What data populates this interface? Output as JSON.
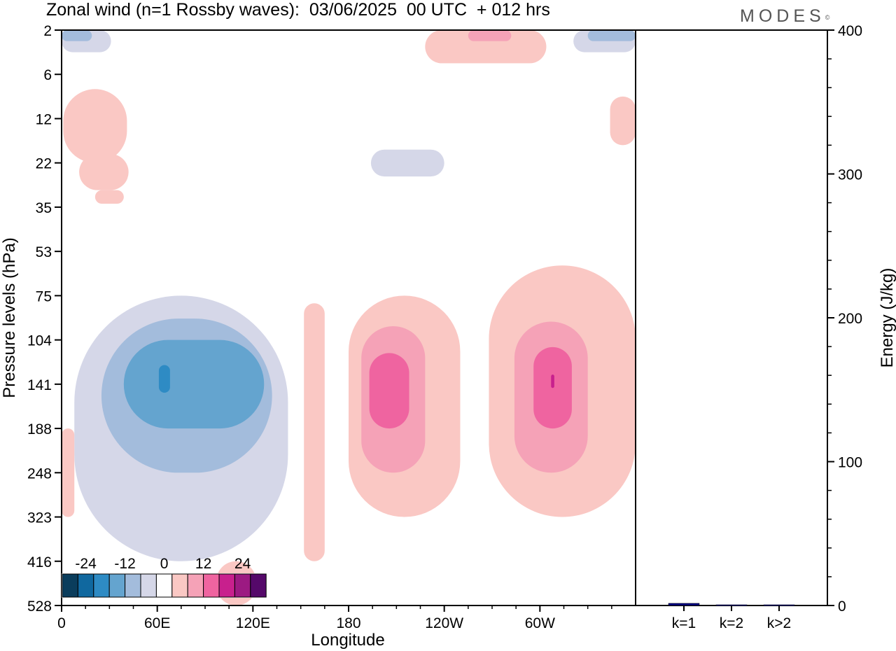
{
  "title": "Zonal wind (n=1 Rossby waves):  03/06/2025  00 UTC  + 012 hrs",
  "logo": {
    "text": "MODES",
    "mark": "©"
  },
  "chart_data": [
    {
      "type": "heatmap",
      "xlabel": "Longitude",
      "ylabel": "Pressure levels (hPa)",
      "x_ticks": [
        {
          "lon": 0,
          "label": "0"
        },
        {
          "lon": 60,
          "label": "60E"
        },
        {
          "lon": 120,
          "label": "120E"
        },
        {
          "lon": 180,
          "label": "180"
        },
        {
          "lon": 240,
          "label": "120W"
        },
        {
          "lon": 300,
          "label": "60W"
        }
      ],
      "xlim": [
        0,
        360
      ],
      "y_levels": [
        "2",
        "6",
        "12",
        "22",
        "35",
        "53",
        "75",
        "104",
        "141",
        "188",
        "248",
        "323",
        "416",
        "528"
      ],
      "colorbar": {
        "tick_labels": [
          "-24",
          "-12",
          "0",
          "12",
          "24"
        ],
        "colors": [
          "#0a3d5c",
          "#10689f",
          "#2e8bc4",
          "#64a4cf",
          "#a3bcdc",
          "#d5d7e8",
          "#ffffff",
          "#fac8c4",
          "#f5a2b7",
          "#ef64a0",
          "#c8208d",
          "#9c1a82",
          "#55096a"
        ]
      },
      "regions": [
        {
          "sign": "negative",
          "level": 1,
          "lon_range": [
            8,
            142
          ],
          "p_range": [
            75,
            416
          ]
        },
        {
          "sign": "negative",
          "level": 2,
          "lon_range": [
            25,
            132
          ],
          "p_range": [
            90,
            248
          ]
        },
        {
          "sign": "negative",
          "level": 3,
          "lon_range": [
            39,
            127
          ],
          "p_range": [
            104,
            188
          ]
        },
        {
          "sign": "negative",
          "level": 4,
          "lon_range": [
            61,
            68
          ],
          "p_range": [
            125,
            150
          ]
        },
        {
          "sign": "positive",
          "level": 1,
          "lon_range": [
            180,
            250
          ],
          "p_range": [
            75,
            323
          ]
        },
        {
          "sign": "positive",
          "level": 2,
          "lon_range": [
            188,
            228
          ],
          "p_range": [
            95,
            248
          ]
        },
        {
          "sign": "positive",
          "level": 3,
          "lon_range": [
            193,
            218
          ],
          "p_range": [
            115,
            188
          ]
        },
        {
          "sign": "positive",
          "level": 1,
          "lon_range": [
            268,
            360
          ],
          "p_range": [
            60,
            323
          ]
        },
        {
          "sign": "positive",
          "level": 2,
          "lon_range": [
            284,
            330
          ],
          "p_range": [
            92,
            248
          ]
        },
        {
          "sign": "positive",
          "level": 3,
          "lon_range": [
            296,
            320
          ],
          "p_range": [
            110,
            188
          ]
        },
        {
          "sign": "positive",
          "level": 4,
          "lon_range": [
            307,
            309
          ],
          "p_range": [
            133,
            145
          ]
        },
        {
          "sign": "positive",
          "level": 1,
          "lon_range": [
            152,
            165
          ],
          "p_range": [
            80,
            416
          ]
        },
        {
          "sign": "positive",
          "level": 1,
          "lon_range": [
            1,
            41
          ],
          "p_range": [
            8,
            22
          ]
        },
        {
          "sign": "positive",
          "level": 1,
          "lon_range": [
            11,
            42
          ],
          "p_range": [
            20,
            30
          ]
        },
        {
          "sign": "positive",
          "level": 1,
          "lon_range": [
            21,
            39
          ],
          "p_range": [
            30,
            34
          ]
        },
        {
          "sign": "positive",
          "level": 1,
          "lon_range": [
            0,
            8
          ],
          "p_range": [
            188,
            323
          ]
        },
        {
          "sign": "positive",
          "level": 1,
          "lon_range": [
            228,
            304
          ],
          "p_range": [
            2,
            5
          ]
        },
        {
          "sign": "positive",
          "level": 2,
          "lon_range": [
            255,
            282
          ],
          "p_range": [
            2,
            3
          ]
        },
        {
          "sign": "positive",
          "level": 1,
          "lon_range": [
            344,
            360
          ],
          "p_range": [
            9,
            18
          ]
        },
        {
          "sign": "positive",
          "level": 1,
          "lon_range": [
            97,
            122
          ],
          "p_range": [
            416,
            528
          ]
        },
        {
          "sign": "negative",
          "level": 1,
          "lon_range": [
            194,
            240
          ],
          "p_range": [
            19,
            26
          ]
        },
        {
          "sign": "negative",
          "level": 1,
          "lon_range": [
            0,
            31
          ],
          "p_range": [
            2,
            4
          ]
        },
        {
          "sign": "negative",
          "level": 2,
          "lon_range": [
            0,
            19
          ],
          "p_range": [
            2,
            3
          ]
        },
        {
          "sign": "negative",
          "level": 1,
          "lon_range": [
            321,
            360
          ],
          "p_range": [
            2,
            4
          ]
        },
        {
          "sign": "negative",
          "level": 2,
          "lon_range": [
            330,
            360
          ],
          "p_range": [
            2,
            3
          ]
        }
      ]
    },
    {
      "type": "bar",
      "ylabel": "Energy (J/kg)",
      "ylim": [
        0,
        400
      ],
      "y_ticks": [
        "0",
        "100",
        "200",
        "300",
        "400"
      ],
      "categories": [
        "k=1",
        "k=2",
        "k>2"
      ],
      "values": [
        1.5,
        0.5,
        0.5
      ],
      "bar_color": "#000080"
    }
  ]
}
